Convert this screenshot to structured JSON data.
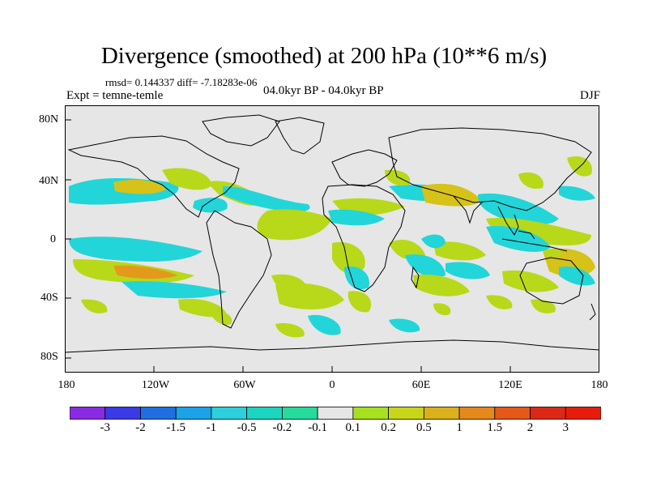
{
  "title": "Divergence (smoothed) at 200 hPa (10**6 m/s)",
  "stats": "rmsd= 0.144337  diff= -7.18283e-06",
  "experiment": "Expt = temne-temle",
  "period": "04.0kyr BP - 04.0kyr BP",
  "season": "DJF",
  "lat_labels": [
    "80N",
    "40N",
    "0",
    "40S",
    "80S"
  ],
  "lon_labels": [
    "180",
    "120W",
    "60W",
    "0",
    "60E",
    "120E",
    "180"
  ],
  "colorbar": {
    "labels": [
      "-3",
      "-2",
      "-1.5",
      "-1",
      "-0.5",
      "-0.2",
      "-0.1",
      "0.1",
      "0.2",
      "0.5",
      "1",
      "1.5",
      "2",
      "3"
    ],
    "colors": [
      "#8a2be2",
      "#3a3ae6",
      "#1f6fe0",
      "#1aa3e8",
      "#2cd0dc",
      "#1cd5c0",
      "#25dc9c",
      "#e6e6e6",
      "#a6e01e",
      "#c8d61a",
      "#dcb01a",
      "#e6881c",
      "#e45818",
      "#dc2814",
      "#e81c0a"
    ]
  },
  "map_colors": {
    "background": "#e6e6e6",
    "negative": "#22d5d8",
    "negative_mid": "#1ec8a6",
    "positive": "#b8d81a",
    "positive_mid": "#d6c218",
    "positive_strong": "#e39a1c",
    "coast": "#000000"
  }
}
